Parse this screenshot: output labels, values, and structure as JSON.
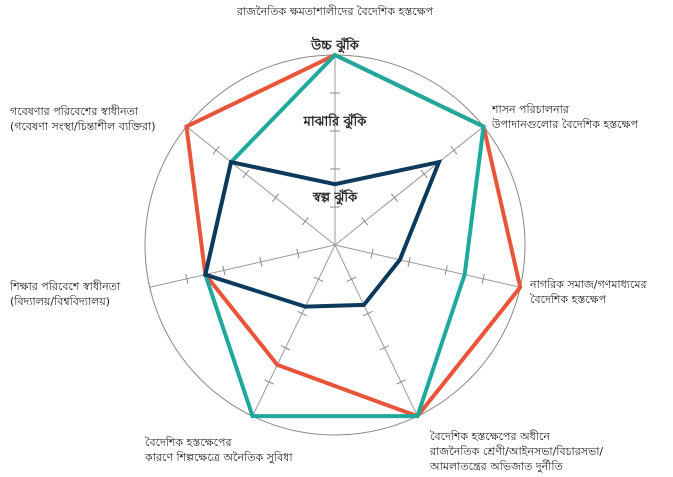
{
  "chart_data": {
    "type": "radar",
    "categories": [
      [
        "রাজনৈতিক ক্ষমতাশালীদের বৈদেশিক হস্তক্ষেপ"
      ],
      [
        "শাসন পরিচালনার",
        "উপাদানগুলোর বৈদেশিক হস্তক্ষেপ"
      ],
      [
        "নাগরিক সমাজ/গণমাধ্যমের",
        "বৈদেশিক হস্তক্ষেপ"
      ],
      [
        "বৈদেশিক হস্তক্ষেপের অধীনে",
        "রাজনৈতিক শ্রেণী/আইনসভা/বিচারসভা/",
        "আমলাতন্ত্রের অভিজাত দুর্নীতি"
      ],
      [
        "বৈদেশিক হস্তক্ষেপের",
        "কারণে শিল্পক্ষেত্রে অনৈতিক সুবিধা"
      ],
      [
        "শিক্ষার পরিবেশে স্বাধীনতা",
        "(বিদ্যালয়/বিশ্ববিদ্যালয়)"
      ],
      [
        "গবেষণার পরিবেশের স্বাধীনতা",
        "(গবেষণা সংস্থা/চিন্তাশীল ব্যক্তিরা)"
      ]
    ],
    "series": [
      {
        "color": "#e8553a",
        "values": [
          5,
          5,
          5,
          5,
          3.5,
          3.5,
          5
        ]
      },
      {
        "color": "#1fa99a",
        "values": [
          5,
          5,
          3.5,
          5,
          5,
          3.5,
          3.5
        ]
      },
      {
        "color": "#0d3a5c",
        "values": [
          1.6,
          3.5,
          1.75,
          1.75,
          1.8,
          3.5,
          3.5
        ]
      }
    ],
    "rlim": [
      0,
      5
    ],
    "rticks": [
      1,
      2,
      3,
      4,
      5
    ],
    "level_labels": [
      {
        "value": 1,
        "label": "স্বল্প ঝুঁকি"
      },
      {
        "value": 3,
        "label": "মাঝারি ঝুঁকি"
      },
      {
        "value": 5,
        "label": "উচ্চ ঝুঁকি"
      }
    ]
  }
}
